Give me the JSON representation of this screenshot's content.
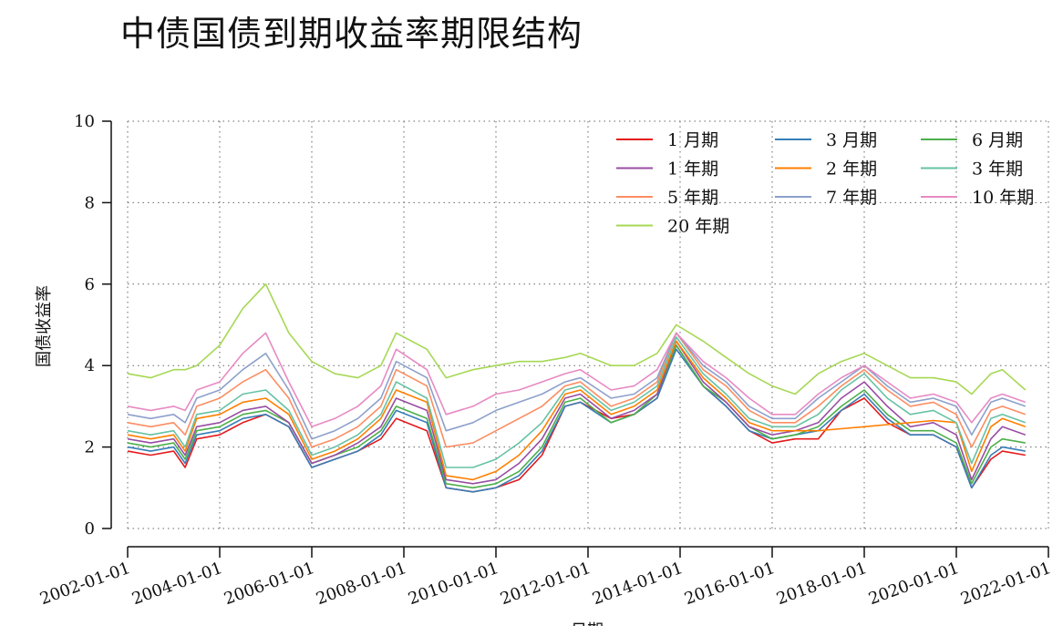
{
  "title": "中债国债到期收益率期限结构",
  "chart_data": {
    "type": "line",
    "xlabel": "日期",
    "ylabel": "国债收益率",
    "xlim": [
      "2002-01-01",
      "2022-01-01"
    ],
    "ylim": [
      0,
      10
    ],
    "x_ticks": [
      "2002-01-01",
      "2004-01-01",
      "2006-01-01",
      "2008-01-01",
      "2010-01-01",
      "2012-01-01",
      "2014-01-01",
      "2016-01-01",
      "2018-01-01",
      "2020-01-01",
      "2022-01-01"
    ],
    "y_ticks": [
      0,
      2,
      4,
      6,
      8,
      10
    ],
    "grid": true,
    "legend_position": "top-right",
    "x": [
      "2002-01",
      "2002-07",
      "2003-01",
      "2003-04",
      "2003-07",
      "2004-01",
      "2004-07",
      "2005-01",
      "2005-07",
      "2006-01",
      "2006-07",
      "2007-01",
      "2007-07",
      "2007-11",
      "2008-07",
      "2008-12",
      "2009-07",
      "2010-01",
      "2010-07",
      "2011-01",
      "2011-07",
      "2011-11",
      "2012-07",
      "2013-01",
      "2013-07",
      "2013-12",
      "2014-07",
      "2015-01",
      "2015-07",
      "2016-01",
      "2016-07",
      "2017-01",
      "2017-07",
      "2018-01",
      "2018-07",
      "2019-01",
      "2019-07",
      "2020-01",
      "2020-05",
      "2020-10",
      "2021-01",
      "2021-07"
    ],
    "series": [
      {
        "name": "1 月期",
        "color": "#e41a1c",
        "values": [
          1.9,
          1.8,
          1.9,
          1.5,
          2.2,
          2.3,
          2.6,
          2.8,
          2.5,
          1.5,
          1.7,
          1.9,
          2.2,
          2.7,
          2.4,
          1.0,
          0.9,
          1.0,
          1.2,
          1.8,
          3.0,
          3.1,
          2.7,
          2.8,
          3.2,
          4.5,
          3.5,
          3.0,
          2.4,
          2.1,
          2.2,
          2.2,
          2.9,
          3.2,
          2.6,
          2.3,
          2.3,
          2.0,
          1.0,
          1.7,
          1.9,
          1.8
        ]
      },
      {
        "name": "3 月期",
        "color": "#377eb8",
        "values": [
          2.0,
          1.9,
          2.0,
          1.6,
          2.3,
          2.4,
          2.7,
          2.8,
          2.5,
          1.5,
          1.7,
          1.9,
          2.3,
          2.9,
          2.6,
          1.0,
          0.9,
          1.0,
          1.3,
          1.9,
          3.0,
          3.1,
          2.6,
          2.8,
          3.2,
          4.4,
          3.5,
          3.0,
          2.4,
          2.2,
          2.3,
          2.4,
          2.9,
          3.3,
          2.7,
          2.3,
          2.3,
          2.0,
          1.0,
          1.8,
          2.0,
          1.9
        ]
      },
      {
        "name": "6 月期",
        "color": "#4daf4a",
        "values": [
          2.1,
          2.0,
          2.1,
          1.7,
          2.4,
          2.5,
          2.8,
          2.9,
          2.6,
          1.6,
          1.8,
          2.0,
          2.4,
          3.0,
          2.7,
          1.1,
          1.0,
          1.1,
          1.4,
          2.0,
          3.1,
          3.2,
          2.6,
          2.8,
          3.3,
          4.5,
          3.5,
          3.1,
          2.5,
          2.2,
          2.3,
          2.5,
          3.0,
          3.4,
          2.8,
          2.4,
          2.4,
          2.1,
          1.1,
          2.0,
          2.2,
          2.1
        ]
      },
      {
        "name": "1 年期",
        "color": "#984ea3",
        "values": [
          2.2,
          2.1,
          2.2,
          1.8,
          2.5,
          2.6,
          2.9,
          3.0,
          2.6,
          1.6,
          1.8,
          2.1,
          2.5,
          3.2,
          2.9,
          1.2,
          1.1,
          1.2,
          1.6,
          2.2,
          3.2,
          3.3,
          2.7,
          2.9,
          3.3,
          4.6,
          3.6,
          3.1,
          2.5,
          2.3,
          2.4,
          2.6,
          3.2,
          3.6,
          3.0,
          2.5,
          2.6,
          2.3,
          1.2,
          2.2,
          2.5,
          2.3
        ]
      },
      {
        "name": "2 年期",
        "color": "#ff7f00",
        "values": [
          2.3,
          2.2,
          2.3,
          1.9,
          2.7,
          2.8,
          3.1,
          3.2,
          2.8,
          1.7,
          1.9,
          2.2,
          2.7,
          3.4,
          3.1,
          1.3,
          1.2,
          1.4,
          1.8,
          2.4,
          3.3,
          3.4,
          2.8,
          3.0,
          3.4,
          4.6,
          3.7,
          3.2,
          2.6,
          2.4,
          2.4,
          2.4,
          2.45,
          2.5,
          2.55,
          2.6,
          2.65,
          2.6,
          1.4,
          2.5,
          2.7,
          2.5
        ]
      },
      {
        "name": "3 年期",
        "color": "#66c2a5",
        "values": [
          2.4,
          2.3,
          2.4,
          2.0,
          2.8,
          2.9,
          3.3,
          3.4,
          2.9,
          1.8,
          2.0,
          2.3,
          2.8,
          3.6,
          3.2,
          1.5,
          1.5,
          1.7,
          2.1,
          2.6,
          3.4,
          3.5,
          2.9,
          3.1,
          3.5,
          4.7,
          3.8,
          3.3,
          2.7,
          2.5,
          2.5,
          2.8,
          3.4,
          3.8,
          3.2,
          2.8,
          2.9,
          2.6,
          1.6,
          2.7,
          2.8,
          2.6
        ]
      },
      {
        "name": "5 年期",
        "color": "#fc8d62",
        "values": [
          2.6,
          2.5,
          2.6,
          2.3,
          3.0,
          3.2,
          3.6,
          3.9,
          3.2,
          2.0,
          2.2,
          2.5,
          3.0,
          3.9,
          3.5,
          2.0,
          2.1,
          2.4,
          2.7,
          3.0,
          3.5,
          3.6,
          3.0,
          3.2,
          3.6,
          4.8,
          3.9,
          3.5,
          2.9,
          2.6,
          2.6,
          3.0,
          3.5,
          3.9,
          3.4,
          3.0,
          3.1,
          2.8,
          2.0,
          2.9,
          3.0,
          2.8
        ]
      },
      {
        "name": "7 年期",
        "color": "#8da0cb",
        "values": [
          2.8,
          2.7,
          2.8,
          2.6,
          3.2,
          3.4,
          3.9,
          4.3,
          3.4,
          2.2,
          2.4,
          2.7,
          3.2,
          4.1,
          3.7,
          2.4,
          2.6,
          2.9,
          3.1,
          3.3,
          3.6,
          3.7,
          3.2,
          3.3,
          3.7,
          4.8,
          4.0,
          3.6,
          3.0,
          2.7,
          2.7,
          3.2,
          3.6,
          4.0,
          3.5,
          3.1,
          3.2,
          3.0,
          2.3,
          3.1,
          3.2,
          3.0
        ]
      },
      {
        "name": "10 年期",
        "color": "#e78ac3",
        "values": [
          3.0,
          2.9,
          3.0,
          2.9,
          3.4,
          3.6,
          4.3,
          4.8,
          3.6,
          2.5,
          2.7,
          3.0,
          3.5,
          4.4,
          3.9,
          2.8,
          3.0,
          3.3,
          3.4,
          3.6,
          3.8,
          3.9,
          3.4,
          3.5,
          3.9,
          4.8,
          4.1,
          3.7,
          3.2,
          2.8,
          2.8,
          3.3,
          3.7,
          4.0,
          3.6,
          3.2,
          3.3,
          3.1,
          2.6,
          3.2,
          3.3,
          3.1
        ]
      },
      {
        "name": "20 年期",
        "color": "#a6d854",
        "values": [
          3.8,
          3.7,
          3.9,
          3.9,
          4.0,
          4.5,
          5.4,
          6.0,
          4.8,
          4.1,
          3.8,
          3.7,
          4.0,
          4.8,
          4.4,
          3.7,
          3.9,
          4.0,
          4.1,
          4.1,
          4.2,
          4.3,
          4.0,
          4.0,
          4.3,
          5.0,
          4.6,
          4.2,
          3.8,
          3.5,
          3.3,
          3.8,
          4.1,
          4.3,
          4.0,
          3.7,
          3.7,
          3.6,
          3.3,
          3.8,
          3.9,
          3.4
        ]
      }
    ]
  }
}
